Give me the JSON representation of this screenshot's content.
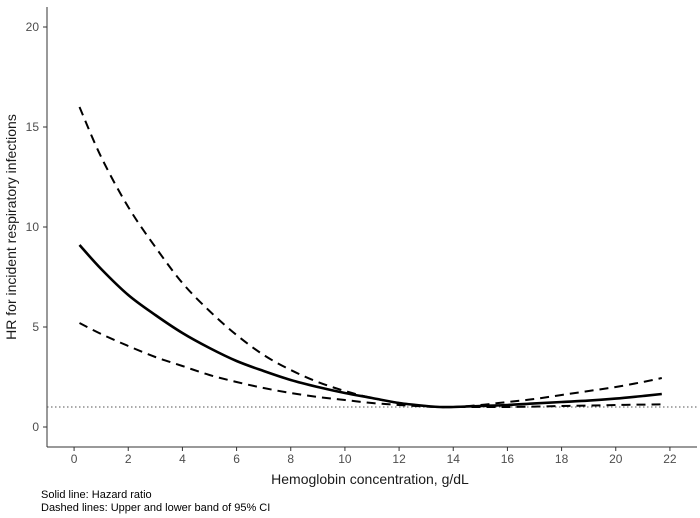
{
  "chart_data": {
    "type": "line",
    "xlabel": "Hemoglobin concentration, g/dL",
    "ylabel": "HR for incident respiratory infections",
    "xlim": [
      -1,
      23
    ],
    "ylim": [
      -1,
      21
    ],
    "x_ticks": [
      0,
      2,
      4,
      6,
      8,
      10,
      12,
      14,
      16,
      18,
      20,
      22
    ],
    "y_ticks": [
      0,
      5,
      10,
      15,
      20
    ],
    "grid": false,
    "reference_line": {
      "y": 1,
      "style": "dotted"
    },
    "series": [
      {
        "style": "solid",
        "x": [
          0.2,
          1,
          2,
          3,
          4,
          5,
          6,
          7,
          8,
          9,
          10,
          11,
          12,
          13,
          13.5,
          14,
          15,
          16,
          17,
          18,
          19,
          20,
          21,
          21.7
        ],
        "y": [
          9.1,
          7.9,
          6.6,
          5.6,
          4.7,
          3.95,
          3.3,
          2.8,
          2.35,
          2.0,
          1.7,
          1.45,
          1.2,
          1.05,
          1.0,
          1.0,
          1.05,
          1.1,
          1.18,
          1.25,
          1.32,
          1.42,
          1.55,
          1.65
        ]
      },
      {
        "style": "dashed",
        "x": [
          0.2,
          1,
          2,
          3,
          4,
          5,
          6,
          7,
          8,
          9,
          10,
          11,
          12,
          13,
          13.5,
          14,
          15,
          16,
          17,
          18,
          19,
          20,
          21,
          21.7
        ],
        "y": [
          16.0,
          13.5,
          11.0,
          9.0,
          7.2,
          5.8,
          4.6,
          3.6,
          2.85,
          2.25,
          1.8,
          1.45,
          1.2,
          1.05,
          1.0,
          1.0,
          1.1,
          1.25,
          1.4,
          1.6,
          1.8,
          2.0,
          2.25,
          2.45
        ]
      },
      {
        "style": "dashed",
        "x": [
          0.2,
          1,
          2,
          3,
          4,
          5,
          6,
          7,
          8,
          9,
          10,
          11,
          12,
          13,
          13.5,
          14,
          15,
          16,
          17,
          18,
          19,
          20,
          21,
          21.7
        ],
        "y": [
          5.2,
          4.65,
          4.05,
          3.5,
          3.05,
          2.6,
          2.25,
          1.95,
          1.7,
          1.5,
          1.35,
          1.2,
          1.1,
          1.02,
          1.0,
          1.0,
          1.0,
          1.0,
          1.02,
          1.05,
          1.07,
          1.1,
          1.12,
          1.13
        ]
      }
    ]
  },
  "notes": {
    "solid": "Solid line: Hazard ratio",
    "dashed": "Dashed lines: Upper and lower band of 95% CI"
  }
}
